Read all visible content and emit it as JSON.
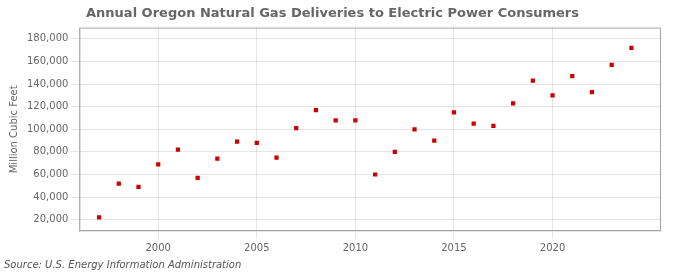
{
  "chart_data": {
    "type": "scatter",
    "title": "Annual Oregon Natural Gas Deliveries to Electric Power Consumers",
    "ylabel": "Million Cubic Feet",
    "annotation": "Source: U.S. Energy Information Administration",
    "x": [
      1997,
      1998,
      1999,
      2000,
      2001,
      2002,
      2003,
      2004,
      2005,
      2006,
      2007,
      2008,
      2009,
      2010,
      2011,
      2012,
      2013,
      2014,
      2015,
      2016,
      2017,
      2018,
      2019,
      2020,
      2021,
      2022,
      2023,
      2024
    ],
    "values": [
      22000,
      52000,
      49000,
      69000,
      82000,
      57000,
      74000,
      89000,
      88000,
      75000,
      101000,
      117000,
      108000,
      108000,
      60000,
      80000,
      100000,
      90000,
      115000,
      105000,
      103000,
      123000,
      143000,
      130000,
      147000,
      133000,
      157000,
      172000
    ],
    "color": "#cc0000",
    "marker": "square",
    "xlim": [
      1996.0,
      2025.5
    ],
    "xticks": [
      2000,
      2005,
      2010,
      2015,
      2020
    ],
    "ylim": [
      10000,
      190000
    ],
    "yticks": [
      {
        "value": 20000,
        "label": "20,000"
      },
      {
        "value": 40000,
        "label": "40,000"
      },
      {
        "value": 60000,
        "label": "60,000"
      },
      {
        "value": 80000,
        "label": "80,000"
      },
      {
        "value": 100000,
        "label": "100,000"
      },
      {
        "value": 120000,
        "label": "120,000"
      },
      {
        "value": 140000,
        "label": "140,000"
      },
      {
        "value": 160000,
        "label": "160,000"
      },
      {
        "value": 180000,
        "label": "180,000"
      }
    ],
    "grid": true
  }
}
